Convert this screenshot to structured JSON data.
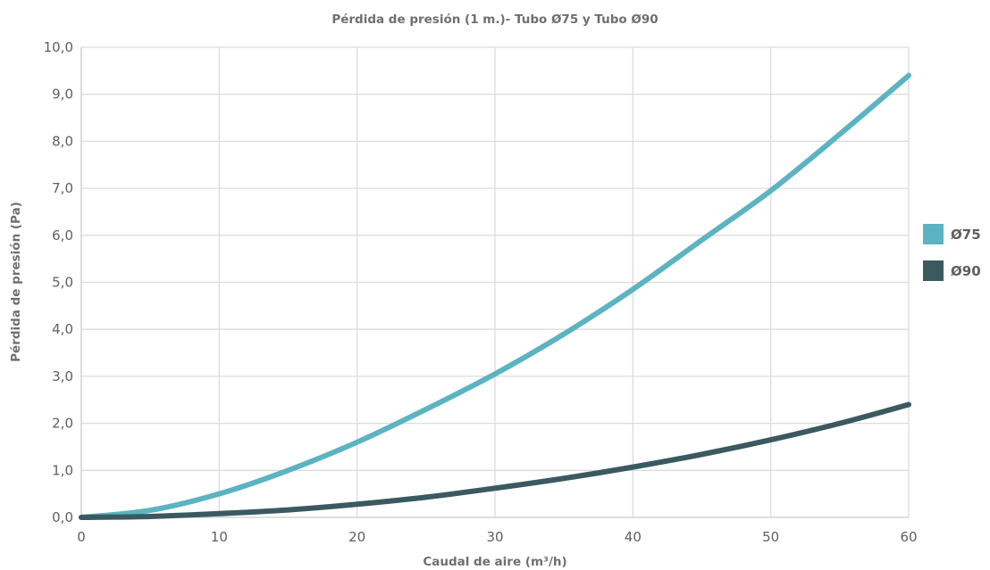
{
  "chart_data": {
    "type": "line",
    "title": "Pérdida de presión (1 m.)- Tubo Ø75 y Tubo Ø90",
    "xlabel": "Caudal de aire (m³/h)",
    "ylabel": "Pérdida de presión (Pa)",
    "xlim": [
      0,
      60
    ],
    "ylim": [
      0,
      10
    ],
    "x_ticks": [
      0,
      10,
      20,
      30,
      40,
      50,
      60
    ],
    "y_ticks": [
      0,
      1,
      2,
      3,
      4,
      5,
      6,
      7,
      8,
      9,
      10
    ],
    "x_tick_labels": [
      "0",
      "10",
      "20",
      "30",
      "40",
      "50",
      "60"
    ],
    "y_tick_labels": [
      "0,0",
      "1,0",
      "2,0",
      "3,0",
      "4,0",
      "5,0",
      "6,0",
      "7,0",
      "8,0",
      "9,0",
      "10,0"
    ],
    "grid": true,
    "legend_position": "right",
    "series": [
      {
        "name": "Ø75",
        "color": "#5cb3c1",
        "x": [
          0,
          5,
          10,
          15,
          20,
          25,
          30,
          35,
          40,
          45,
          50,
          55,
          60
        ],
        "y": [
          0,
          0.15,
          0.5,
          1.0,
          1.6,
          2.3,
          3.05,
          3.9,
          4.85,
          5.9,
          6.95,
          8.15,
          9.4
        ]
      },
      {
        "name": "Ø90",
        "color": "#3a5a60",
        "x": [
          0,
          5,
          10,
          15,
          20,
          25,
          30,
          35,
          40,
          45,
          50,
          55,
          60
        ],
        "y": [
          0,
          0.02,
          0.08,
          0.16,
          0.28,
          0.43,
          0.62,
          0.83,
          1.07,
          1.34,
          1.65,
          2.0,
          2.4
        ]
      }
    ]
  }
}
